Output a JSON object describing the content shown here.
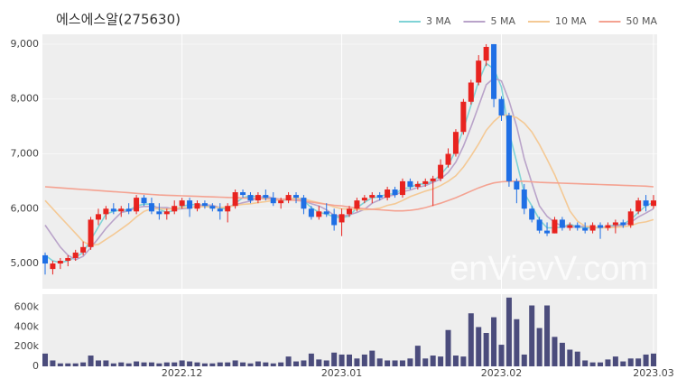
{
  "chart_data": {
    "type": "candlestick",
    "title": "에스에스알(275630)",
    "watermark": "enVievV.com",
    "categories": [
      null,
      null,
      null,
      null,
      null,
      null,
      null,
      null,
      null,
      null,
      null,
      null,
      null,
      null,
      null,
      null,
      null,
      null,
      "2022.12",
      null,
      null,
      null,
      null,
      null,
      null,
      null,
      null,
      null,
      null,
      null,
      null,
      null,
      null,
      null,
      null,
      null,
      null,
      null,
      null,
      "2023.01",
      null,
      null,
      null,
      null,
      null,
      null,
      null,
      null,
      null,
      null,
      null,
      null,
      null,
      null,
      null,
      null,
      null,
      null,
      null,
      null,
      "2023.02",
      null,
      null,
      null,
      null,
      null,
      null,
      null,
      null,
      null,
      null,
      null,
      null,
      null,
      null,
      null,
      null,
      null,
      null,
      null,
      "2023.03"
    ],
    "open": [
      5150,
      4900,
      5000,
      5050,
      5100,
      5200,
      5300,
      5800,
      5900,
      6000,
      5950,
      6000,
      5950,
      6200,
      6100,
      5950,
      5900,
      5950,
      6050,
      6150,
      6000,
      6100,
      6050,
      6000,
      5950,
      6050,
      6300,
      6250,
      6150,
      6250,
      6200,
      6100,
      6150,
      6250,
      6200,
      6000,
      5850,
      5950,
      5900,
      5750,
      5900,
      6000,
      6150,
      6200,
      6250,
      6200,
      6350,
      6250,
      6500,
      6400,
      6450,
      6500,
      6550,
      6800,
      7000,
      7400,
      7950,
      8300,
      8700,
      9000,
      8000,
      7700,
      6500,
      6350,
      6000,
      5800,
      5600,
      5550,
      5800,
      5650,
      5700,
      5650,
      5600,
      5700,
      5650,
      5700,
      5750,
      5700,
      5950,
      6150,
      6050
    ],
    "high": [
      5200,
      5050,
      5100,
      5150,
      5250,
      5400,
      5850,
      6000,
      6050,
      6100,
      6050,
      6100,
      6250,
      6250,
      6200,
      6100,
      6000,
      6150,
      6200,
      6200,
      6150,
      6150,
      6100,
      6100,
      6100,
      6350,
      6350,
      6300,
      6300,
      6350,
      6300,
      6200,
      6300,
      6300,
      6250,
      6050,
      6050,
      6100,
      6000,
      6000,
      6050,
      6200,
      6250,
      6300,
      6300,
      6400,
      6400,
      6550,
      6550,
      6500,
      6550,
      6600,
      6900,
      7100,
      7450,
      8000,
      8350,
      8800,
      9000,
      9000,
      8050,
      7750,
      6550,
      6450,
      6050,
      5850,
      5750,
      5850,
      5850,
      5750,
      5750,
      5750,
      5750,
      5750,
      5750,
      5800,
      5800,
      6000,
      6200,
      6250,
      6250
    ],
    "low": [
      4800,
      4800,
      4900,
      4950,
      5050,
      5150,
      5250,
      5700,
      5800,
      5900,
      5850,
      5900,
      5900,
      6050,
      5900,
      5800,
      5800,
      5900,
      6000,
      5850,
      5950,
      6000,
      5950,
      5800,
      5750,
      6000,
      6200,
      6100,
      6100,
      6150,
      6050,
      6000,
      6100,
      6100,
      5900,
      5800,
      5800,
      5850,
      5600,
      5500,
      5850,
      5950,
      6100,
      6100,
      6150,
      6150,
      6200,
      6200,
      6350,
      6350,
      6400,
      6050,
      6500,
      6750,
      6950,
      7350,
      7900,
      8250,
      8600,
      7850,
      7600,
      6400,
      6100,
      5900,
      5750,
      5550,
      5500,
      5550,
      5600,
      5600,
      5600,
      5550,
      5550,
      5450,
      5600,
      5550,
      5650,
      5650,
      5900,
      5950,
      6000
    ],
    "close": [
      5000,
      5000,
      5050,
      5100,
      5200,
      5300,
      5800,
      5900,
      6000,
      5950,
      6000,
      5950,
      6200,
      6100,
      5950,
      5900,
      5950,
      6050,
      6150,
      6000,
      6100,
      6050,
      6000,
      5950,
      6050,
      6300,
      6250,
      6150,
      6250,
      6200,
      6100,
      6150,
      6250,
      6200,
      6000,
      5850,
      5950,
      5900,
      5700,
      5900,
      6000,
      6150,
      6200,
      6250,
      6200,
      6350,
      6250,
      6500,
      6400,
      6450,
      6500,
      6550,
      6800,
      7000,
      7400,
      7950,
      8300,
      8700,
      8950,
      8000,
      7700,
      6500,
      6350,
      6000,
      5800,
      5600,
      5550,
      5800,
      5650,
      5700,
      5650,
      5600,
      5700,
      5650,
      5700,
      5750,
      5700,
      5950,
      6150,
      6050,
      6150
    ],
    "up_color": "#e8231f",
    "down_color": "#1f6fe5",
    "ylim": [
      4540,
      9180
    ],
    "yticks": [
      {
        "value": 5000,
        "label": "5,000"
      },
      {
        "value": 6000,
        "label": "6,000"
      },
      {
        "value": 7000,
        "label": "7,000"
      },
      {
        "value": 8000,
        "label": "8,000"
      },
      {
        "value": 9000,
        "label": "9,000"
      }
    ],
    "series": [
      {
        "name": "3 MA",
        "color": "#7fd3d6",
        "values": [
          5150,
          5050,
          5017,
          5050,
          5117,
          5200,
          5433,
          5667,
          5900,
          5950,
          5983,
          5967,
          6050,
          6083,
          6083,
          5983,
          5933,
          5967,
          6050,
          6067,
          6083,
          6050,
          6050,
          6000,
          6000,
          6100,
          6200,
          6233,
          6217,
          6200,
          6183,
          6150,
          6167,
          6200,
          6150,
          6017,
          5933,
          5900,
          5850,
          5833,
          5867,
          6017,
          6117,
          6200,
          6217,
          6267,
          6267,
          6367,
          6383,
          6450,
          6450,
          6500,
          6617,
          6783,
          7067,
          7450,
          7883,
          8317,
          8650,
          8550,
          8217,
          7400,
          6850,
          6283,
          6050,
          5800,
          5650,
          5650,
          5667,
          5717,
          5667,
          5650,
          5650,
          5650,
          5683,
          5700,
          5717,
          5800,
          5933,
          6050,
          6117
        ]
      },
      {
        "name": "5 MA",
        "color": "#b9a3c9",
        "values": [
          5700,
          5500,
          5300,
          5150,
          5070,
          5130,
          5290,
          5460,
          5640,
          5790,
          5930,
          5960,
          6020,
          6040,
          6040,
          6020,
          6020,
          5990,
          6000,
          6010,
          6050,
          6070,
          6060,
          6020,
          6030,
          6070,
          6110,
          6140,
          6200,
          6230,
          6190,
          6170,
          6180,
          6180,
          6140,
          6090,
          6050,
          5980,
          5880,
          5860,
          5890,
          5930,
          5990,
          6100,
          6160,
          6230,
          6250,
          6310,
          6340,
          6390,
          6420,
          6480,
          6540,
          6660,
          6850,
          7140,
          7490,
          7870,
          8260,
          8380,
          8330,
          7970,
          7500,
          6910,
          6470,
          6050,
          5860,
          5750,
          5680,
          5660,
          5670,
          5680,
          5660,
          5660,
          5660,
          5680,
          5700,
          5750,
          5850,
          5920,
          6000
        ]
      },
      {
        "name": "10 MA",
        "color": "#f4c995",
        "values": [
          6150,
          6000,
          5850,
          5700,
          5550,
          5400,
          5330,
          5350,
          5440,
          5530,
          5630,
          5730,
          5850,
          5950,
          6000,
          6000,
          5990,
          6000,
          6020,
          6020,
          6030,
          6040,
          6020,
          6020,
          6030,
          6060,
          6080,
          6090,
          6110,
          6130,
          6150,
          6160,
          6180,
          6190,
          6180,
          6140,
          6110,
          6080,
          6030,
          6000,
          5990,
          5990,
          5980,
          5990,
          6010,
          6060,
          6090,
          6150,
          6220,
          6270,
          6320,
          6360,
          6420,
          6500,
          6600,
          6760,
          6960,
          7180,
          7430,
          7590,
          7710,
          7700,
          7660,
          7560,
          7400,
          7170,
          6900,
          6620,
          6290,
          5960,
          5770,
          5680,
          5670,
          5650,
          5650,
          5660,
          5670,
          5690,
          5740,
          5760,
          5800
        ]
      },
      {
        "name": "50 MA",
        "color": "#f4a291",
        "values": [
          6400,
          6390,
          6380,
          6370,
          6360,
          6350,
          6340,
          6330,
          6320,
          6310,
          6300,
          6290,
          6280,
          6270,
          6260,
          6250,
          6245,
          6240,
          6235,
          6230,
          6225,
          6220,
          6215,
          6210,
          6205,
          6200,
          6195,
          6190,
          6185,
          6180,
          6175,
          6170,
          6160,
          6150,
          6140,
          6120,
          6100,
          6080,
          6060,
          6050,
          6030,
          6010,
          6000,
          5990,
          5980,
          5970,
          5960,
          5960,
          5970,
          5990,
          6020,
          6060,
          6100,
          6150,
          6200,
          6260,
          6320,
          6380,
          6430,
          6470,
          6490,
          6500,
          6500,
          6500,
          6490,
          6480,
          6475,
          6470,
          6465,
          6460,
          6455,
          6450,
          6445,
          6440,
          6435,
          6430,
          6425,
          6420,
          6415,
          6410,
          6400
        ]
      }
    ],
    "volume": {
      "color": "#4b4c7c",
      "ylim": [
        0,
        735000
      ],
      "yticks": [
        0,
        {
          "value": 200000,
          "label": "200k"
        },
        {
          "value": 400000,
          "label": "400k"
        },
        {
          "value": 600000,
          "label": "600k"
        }
      ],
      "values": [
        130000,
        60000,
        30000,
        30000,
        30000,
        40000,
        110000,
        60000,
        60000,
        30000,
        40000,
        30000,
        50000,
        40000,
        40000,
        30000,
        40000,
        40000,
        60000,
        50000,
        40000,
        30000,
        30000,
        40000,
        40000,
        60000,
        40000,
        30000,
        50000,
        40000,
        30000,
        40000,
        100000,
        50000,
        60000,
        130000,
        70000,
        60000,
        140000,
        120000,
        120000,
        80000,
        120000,
        160000,
        80000,
        60000,
        60000,
        60000,
        80000,
        210000,
        80000,
        110000,
        100000,
        370000,
        110000,
        100000,
        540000,
        400000,
        340000,
        500000,
        220000,
        700000,
        480000,
        120000,
        620000,
        390000,
        620000,
        300000,
        240000,
        170000,
        150000,
        60000,
        40000,
        40000,
        70000,
        100000,
        50000,
        80000,
        80000,
        120000,
        130000
      ]
    }
  }
}
